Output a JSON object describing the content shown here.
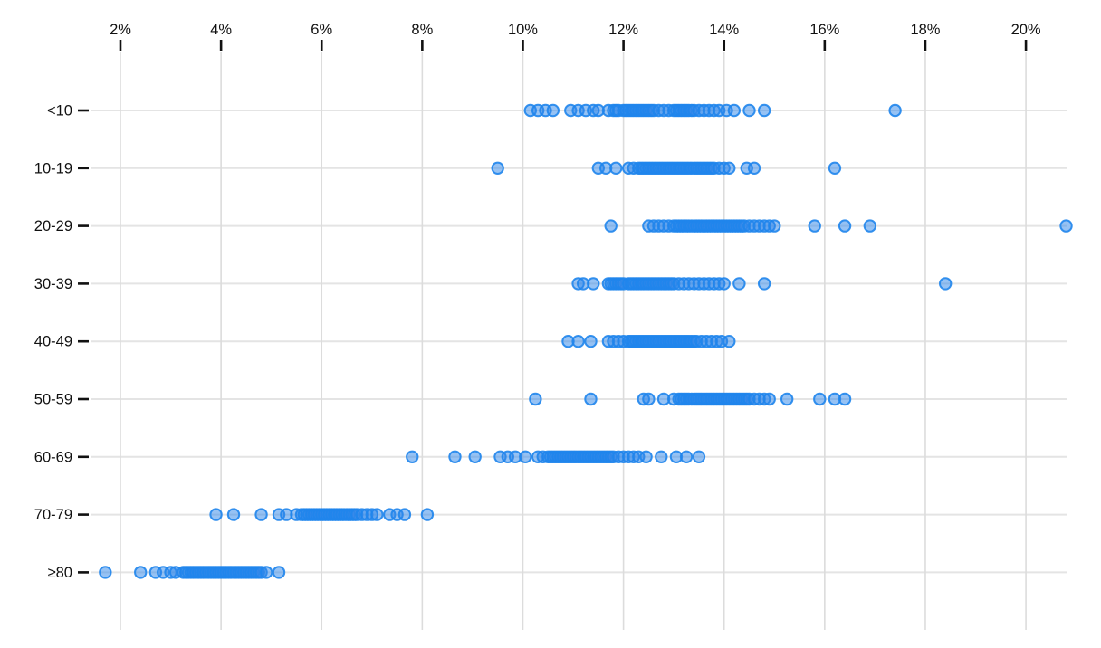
{
  "chart_data": {
    "type": "scatter",
    "variant": "horizontal-strip-dot-plot",
    "title": "",
    "xlabel": "",
    "ylabel": "",
    "grid": true,
    "x_axis_position": "top",
    "x_ticks": [
      2,
      4,
      6,
      8,
      10,
      12,
      14,
      16,
      18,
      20
    ],
    "x_tick_labels": [
      "2%",
      "4%",
      "6%",
      "8%",
      "10%",
      "12%",
      "14%",
      "16%",
      "18%",
      "20%"
    ],
    "xlim": [
      1.4,
      20.85
    ],
    "categories": [
      "<10",
      "10-19",
      "20-29",
      "30-39",
      "40-49",
      "50-59",
      "60-69",
      "70-79",
      "≥80"
    ],
    "point_style": {
      "stroke_color": "#1f85ec",
      "fill_color": "#2e86e9",
      "fill_opacity": 0.5,
      "stroke_opacity": 0.9,
      "radius_px": 6.2
    },
    "gridline_color_vertical": "#dcdcdc",
    "gridline_color_horizontal": "#e4e4e4",
    "tick_color": "#111111",
    "series": [
      {
        "category": "<10",
        "values": [
          10.15,
          10.3,
          10.45,
          10.6,
          10.95,
          11.1,
          11.25,
          11.4,
          11.5,
          11.7,
          11.8,
          11.85,
          11.9,
          12.0,
          12.05,
          12.1,
          12.15,
          12.2,
          12.25,
          12.3,
          12.35,
          12.4,
          12.45,
          12.5,
          12.55,
          12.6,
          12.7,
          12.8,
          12.9,
          13.0,
          13.05,
          13.1,
          13.15,
          13.2,
          13.25,
          13.3,
          13.35,
          13.4,
          13.5,
          13.6,
          13.7,
          13.8,
          13.9,
          14.05,
          14.2,
          14.5,
          14.8,
          17.4
        ]
      },
      {
        "category": "10-19",
        "values": [
          9.5,
          11.5,
          11.65,
          11.85,
          12.1,
          12.2,
          12.3,
          12.35,
          12.4,
          12.45,
          12.5,
          12.55,
          12.6,
          12.65,
          12.7,
          12.75,
          12.8,
          12.85,
          12.9,
          12.95,
          13.0,
          13.05,
          13.1,
          13.15,
          13.2,
          13.25,
          13.3,
          13.35,
          13.4,
          13.45,
          13.5,
          13.55,
          13.6,
          13.65,
          13.7,
          13.75,
          13.8,
          13.9,
          14.0,
          14.1,
          14.45,
          14.6,
          16.2
        ]
      },
      {
        "category": "20-29",
        "values": [
          11.75,
          12.5,
          12.6,
          12.7,
          12.8,
          12.9,
          13.0,
          13.05,
          13.1,
          13.15,
          13.2,
          13.25,
          13.3,
          13.35,
          13.4,
          13.45,
          13.5,
          13.55,
          13.6,
          13.65,
          13.7,
          13.75,
          13.8,
          13.85,
          13.9,
          13.95,
          14.0,
          14.05,
          14.1,
          14.15,
          14.2,
          14.25,
          14.3,
          14.35,
          14.4,
          14.5,
          14.6,
          14.7,
          14.8,
          14.9,
          15.0,
          15.8,
          16.4,
          16.9,
          20.8
        ]
      },
      {
        "category": "30-39",
        "values": [
          11.1,
          11.2,
          11.4,
          11.7,
          11.75,
          11.8,
          11.85,
          11.9,
          11.95,
          12.0,
          12.1,
          12.15,
          12.2,
          12.25,
          12.3,
          12.35,
          12.4,
          12.45,
          12.5,
          12.55,
          12.6,
          12.65,
          12.7,
          12.75,
          12.8,
          12.85,
          12.9,
          12.95,
          13.0,
          13.1,
          13.2,
          13.3,
          13.4,
          13.5,
          13.6,
          13.7,
          13.8,
          13.9,
          14.0,
          14.3,
          14.8,
          18.4
        ]
      },
      {
        "category": "40-49",
        "values": [
          10.9,
          11.1,
          11.35,
          11.7,
          11.8,
          11.9,
          12.0,
          12.1,
          12.15,
          12.2,
          12.25,
          12.3,
          12.35,
          12.4,
          12.45,
          12.5,
          12.55,
          12.6,
          12.65,
          12.7,
          12.75,
          12.8,
          12.85,
          12.9,
          12.95,
          13.0,
          13.05,
          13.1,
          13.15,
          13.2,
          13.25,
          13.3,
          13.35,
          13.4,
          13.45,
          13.55,
          13.65,
          13.75,
          13.85,
          13.95,
          14.1
        ]
      },
      {
        "category": "50-59",
        "values": [
          10.25,
          11.35,
          12.4,
          12.5,
          12.8,
          13.0,
          13.1,
          13.15,
          13.2,
          13.25,
          13.3,
          13.35,
          13.4,
          13.45,
          13.5,
          13.55,
          13.6,
          13.65,
          13.7,
          13.75,
          13.8,
          13.85,
          13.9,
          13.95,
          14.0,
          14.05,
          14.1,
          14.15,
          14.2,
          14.25,
          14.3,
          14.35,
          14.4,
          14.45,
          14.5,
          14.6,
          14.7,
          14.8,
          14.9,
          15.25,
          15.9,
          16.2,
          16.4
        ]
      },
      {
        "category": "60-69",
        "values": [
          7.8,
          8.65,
          9.05,
          9.55,
          9.7,
          9.85,
          10.05,
          10.3,
          10.4,
          10.5,
          10.55,
          10.6,
          10.65,
          10.7,
          10.75,
          10.8,
          10.85,
          10.9,
          10.95,
          11.0,
          11.05,
          11.1,
          11.15,
          11.2,
          11.25,
          11.3,
          11.35,
          11.4,
          11.45,
          11.5,
          11.55,
          11.6,
          11.65,
          11.7,
          11.75,
          11.8,
          11.9,
          12.0,
          12.1,
          12.2,
          12.3,
          12.45,
          12.75,
          13.05,
          13.25,
          13.5
        ]
      },
      {
        "category": "70-79",
        "values": [
          3.9,
          4.25,
          4.8,
          5.15,
          5.3,
          5.5,
          5.6,
          5.65,
          5.7,
          5.75,
          5.8,
          5.85,
          5.9,
          5.95,
          6.0,
          6.05,
          6.1,
          6.15,
          6.2,
          6.25,
          6.3,
          6.35,
          6.4,
          6.45,
          6.5,
          6.55,
          6.6,
          6.65,
          6.7,
          6.8,
          6.9,
          7.0,
          7.1,
          7.35,
          7.5,
          7.65,
          8.1
        ]
      },
      {
        "category": "≥80",
        "values": [
          1.7,
          2.4,
          2.7,
          2.85,
          3.0,
          3.1,
          3.25,
          3.3,
          3.35,
          3.4,
          3.45,
          3.5,
          3.55,
          3.6,
          3.65,
          3.7,
          3.75,
          3.8,
          3.85,
          3.9,
          3.95,
          4.0,
          4.05,
          4.1,
          4.15,
          4.2,
          4.25,
          4.3,
          4.35,
          4.4,
          4.45,
          4.5,
          4.55,
          4.6,
          4.65,
          4.7,
          4.75,
          4.8,
          4.9,
          5.15
        ]
      }
    ]
  }
}
